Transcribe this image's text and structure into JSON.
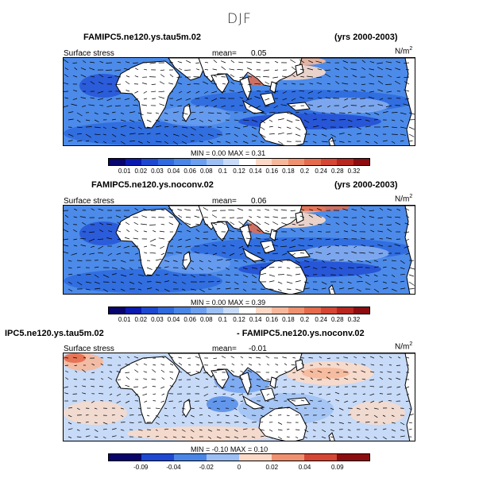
{
  "figure": {
    "season": "DJF"
  },
  "colors": {
    "scale": [
      "#08056d",
      "#0b1ab0",
      "#1e48d2",
      "#2f6adf",
      "#4a86e8",
      "#6c9ff0",
      "#9cbff4",
      "#c7daf7",
      "#ffffff",
      "#fbd9c6",
      "#f6b89a",
      "#ef9170",
      "#e56b4c",
      "#d54634",
      "#b8261f",
      "#8c0c10"
    ],
    "ocean_low": "#2e6ae0",
    "ocean_mid": "#4c8be9",
    "land": "#ffffff",
    "vector": "#000000"
  },
  "chart_data": [
    {
      "type": "heatmap",
      "title": "FAMIPC5.ne120.ys.tau5m.02",
      "period": "(yrs 2000-2003)",
      "variable": "Surface stress",
      "mean_label": "mean=",
      "mean": "0.05",
      "units": "N/m",
      "units_exp": "2",
      "min_label": "MIN =",
      "min": "0.00",
      "max_label": "MAX =",
      "max": "0.31",
      "levels": [
        "0.01",
        "0.02",
        "0.03",
        "0.04",
        "0.06",
        "0.08",
        "0.1",
        "0.12",
        "0.14",
        "0.16",
        "0.18",
        "0.2",
        "0.24",
        "0.28",
        "0.32"
      ]
    },
    {
      "type": "heatmap",
      "title": "FAMIPC5.ne120.ys.noconv.02",
      "period": "(yrs 2000-2003)",
      "variable": "Surface stress",
      "mean_label": "mean=",
      "mean": "0.06",
      "units": "N/m",
      "units_exp": "2",
      "min_label": "MIN =",
      "min": "0.00",
      "max_label": "MAX =",
      "max": "0.39",
      "levels": [
        "0.01",
        "0.02",
        "0.03",
        "0.04",
        "0.06",
        "0.08",
        "0.1",
        "0.12",
        "0.14",
        "0.16",
        "0.18",
        "0.2",
        "0.24",
        "0.28",
        "0.32"
      ]
    },
    {
      "type": "heatmap",
      "title": "IPC5.ne120.ys.tau5m.02",
      "title_right": "- FAMIPC5.ne120.ys.noconv.02",
      "variable": "Surface stress",
      "mean_label": "mean=",
      "mean": "-0.01",
      "units": "N/m",
      "units_exp": "2",
      "min_label": "MIN =",
      "min": "-0.10",
      "max_label": "MAX =",
      "max": "0.10",
      "levels": [
        "-0.09",
        "-0.04",
        "-0.02",
        "0",
        "0.02",
        "0.04",
        "0.09"
      ]
    }
  ]
}
